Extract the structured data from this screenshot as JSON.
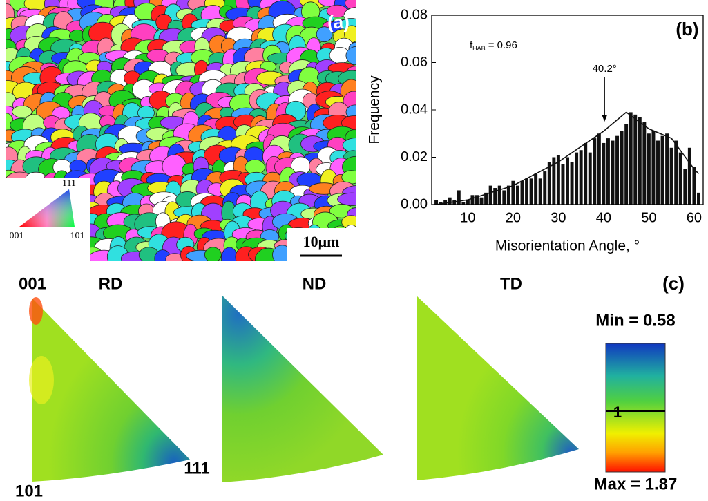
{
  "panel_a": {
    "label": "(a)",
    "key": {
      "top": "111",
      "left": "001",
      "right": "101"
    },
    "scale_bar": "10μm"
  },
  "chart_data": {
    "type": "histogram",
    "label": "(b)",
    "x_label": "Misorientation Angle, °",
    "y_label": "Frequency",
    "f_hab": {
      "symbol": "f",
      "subscript": "HAB",
      "text": "= 0.96"
    },
    "annotation": {
      "label": "40.2°",
      "value": 40.2
    },
    "bins": [
      2.5,
      3.5,
      4.5,
      5.5,
      6.5,
      7.5,
      8.5,
      9.5,
      10.5,
      11.5,
      12.5,
      13.5,
      14.5,
      15.5,
      16.5,
      17.5,
      18.5,
      19.5,
      20.5,
      21.5,
      22.5,
      23.5,
      24.5,
      25.5,
      26.5,
      27.5,
      28.5,
      29.5,
      30.5,
      31.5,
      32.5,
      33.5,
      34.5,
      35.5,
      36.5,
      37.5,
      38.5,
      39.5,
      40.5,
      41.5,
      42.5,
      43.5,
      44.5,
      45.5,
      46.5,
      47.5,
      48.5,
      49.5,
      50.5,
      51.5,
      52.5,
      53.5,
      54.5,
      55.5,
      56.5,
      57.5,
      58.5,
      59.5,
      60.5,
      61.5
    ],
    "values": [
      0.002,
      0.001,
      0.002,
      0.003,
      0.002,
      0.006,
      0.001,
      0.002,
      0.004,
      0.004,
      0.003,
      0.005,
      0.008,
      0.007,
      0.008,
      0.006,
      0.008,
      0.01,
      0.008,
      0.01,
      0.011,
      0.011,
      0.013,
      0.011,
      0.014,
      0.018,
      0.02,
      0.021,
      0.017,
      0.02,
      0.018,
      0.022,
      0.023,
      0.026,
      0.022,
      0.028,
      0.03,
      0.026,
      0.028,
      0.027,
      0.029,
      0.031,
      0.034,
      0.039,
      0.038,
      0.037,
      0.035,
      0.03,
      0.031,
      0.027,
      0.029,
      0.03,
      0.024,
      0.027,
      0.022,
      0.015,
      0.024,
      0.016,
      0.005
    ],
    "color": "#111111",
    "curve": {
      "x": [
        3,
        10,
        20,
        30,
        40,
        45,
        50,
        55,
        60,
        61
      ],
      "values": [
        0.0,
        0.002,
        0.008,
        0.018,
        0.031,
        0.039,
        0.032,
        0.028,
        0.015,
        0.013
      ]
    },
    "xlim": [
      2,
      62
    ],
    "xticks": [
      10,
      20,
      30,
      40,
      50,
      60
    ],
    "ylim": [
      0,
      0.08
    ],
    "yticks": [
      {
        "value": 0,
        "label": "0.00"
      },
      {
        "value": 0.02,
        "label": "0.02"
      },
      {
        "value": 0.04,
        "label": "0.04"
      },
      {
        "value": 0.06,
        "label": "0.06"
      },
      {
        "value": 0.08,
        "label": "0.08"
      }
    ]
  },
  "panel_c": {
    "label": "(c)",
    "corners": {
      "top": "001",
      "bottom": "101",
      "right": "111"
    },
    "directions": [
      "RD",
      "ND",
      "TD"
    ],
    "colorbar": {
      "min": "Min = 0.58",
      "mid": "1",
      "max": "Max = 1.87"
    }
  }
}
